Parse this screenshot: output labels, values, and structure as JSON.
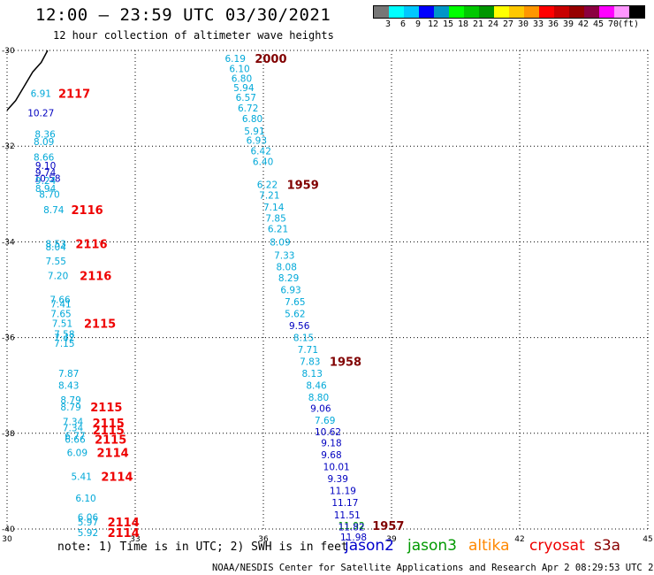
{
  "title": "12:00 – 23:59 UTC 03/30/2021",
  "subtitle": "12 hour collection of altimeter wave heights",
  "legend": {
    "colors": [
      "#777777",
      "#00ffff",
      "#00c8ff",
      "#0000ff",
      "#0096c8",
      "#00ff00",
      "#00c800",
      "#009600",
      "#ffff00",
      "#ffc800",
      "#ff9600",
      "#ff0000",
      "#c80000",
      "#960000",
      "#8b0040",
      "#ff00ff",
      "#ff96ff",
      "#000000"
    ],
    "labels": [
      "3",
      "6",
      "9",
      "12",
      "15",
      "18",
      "21",
      "24",
      "27",
      "30",
      "33",
      "36",
      "39",
      "42",
      "45",
      "70",
      "(ft)"
    ]
  },
  "axes": {
    "x_ticks": [
      "30",
      "33",
      "36",
      "39",
      "42",
      "45"
    ],
    "y_ticks": [
      "-30",
      "-32",
      "-34",
      "-36",
      "-38",
      "-40"
    ]
  },
  "track_colors": {
    "cyan": "#00a8d8",
    "blue": "#0000c0",
    "green": "#00a000",
    "time_red": "#ee0000",
    "time_maroon": "#800000"
  },
  "values_left": [
    {
      "t": "6.91",
      "lon": 30.55,
      "lat": -30.9,
      "c": "cyan"
    },
    {
      "t": "10.27",
      "lon": 30.48,
      "lat": -31.3,
      "c": "blue"
    },
    {
      "t": "8.36",
      "lon": 30.65,
      "lat": -31.75,
      "c": "cyan"
    },
    {
      "t": "8.09",
      "lon": 30.62,
      "lat": -31.9,
      "c": "cyan"
    },
    {
      "t": "8.66",
      "lon": 30.62,
      "lat": -32.23,
      "c": "cyan"
    },
    {
      "t": "9.10",
      "lon": 30.66,
      "lat": -32.4,
      "c": "blue"
    },
    {
      "t": "9.74",
      "lon": 30.66,
      "lat": -32.55,
      "c": "blue"
    },
    {
      "t": "10.58",
      "lon": 30.63,
      "lat": -32.67,
      "c": "blue"
    },
    {
      "t": "9.24",
      "lon": 30.66,
      "lat": -32.72,
      "c": "cyan"
    },
    {
      "t": "8.94",
      "lon": 30.66,
      "lat": -32.88,
      "c": "cyan"
    },
    {
      "t": "8.70",
      "lon": 30.75,
      "lat": -33.0,
      "c": "cyan"
    },
    {
      "t": "8.74",
      "lon": 30.85,
      "lat": -33.33,
      "c": "cyan"
    },
    {
      "t": "8.53",
      "lon": 30.9,
      "lat": -34.04,
      "c": "cyan"
    },
    {
      "t": "8.04",
      "lon": 30.9,
      "lat": -34.1,
      "c": "cyan"
    },
    {
      "t": "7.55",
      "lon": 30.9,
      "lat": -34.4,
      "c": "cyan"
    },
    {
      "t": "7.20",
      "lon": 30.95,
      "lat": -34.7,
      "c": "cyan"
    },
    {
      "t": "7.66",
      "lon": 31.0,
      "lat": -35.2,
      "c": "cyan"
    },
    {
      "t": "7.41",
      "lon": 31.02,
      "lat": -35.3,
      "c": "cyan"
    },
    {
      "t": "7.65",
      "lon": 31.02,
      "lat": -35.5,
      "c": "cyan"
    },
    {
      "t": "7.51",
      "lon": 31.05,
      "lat": -35.7,
      "c": "cyan"
    },
    {
      "t": "7.58",
      "lon": 31.1,
      "lat": -35.92,
      "c": "cyan"
    },
    {
      "t": "7.42",
      "lon": 31.1,
      "lat": -36.0,
      "c": "cyan"
    },
    {
      "t": "7.15",
      "lon": 31.1,
      "lat": -36.12,
      "c": "cyan"
    },
    {
      "t": "7.87",
      "lon": 31.2,
      "lat": -36.75,
      "c": "cyan"
    },
    {
      "t": "8.43",
      "lon": 31.2,
      "lat": -37.0,
      "c": "cyan"
    },
    {
      "t": "8.79",
      "lon": 31.25,
      "lat": -37.3,
      "c": "cyan"
    },
    {
      "t": "8.79",
      "lon": 31.25,
      "lat": -37.45,
      "c": "cyan"
    },
    {
      "t": "7.34",
      "lon": 31.3,
      "lat": -37.75,
      "c": "cyan"
    },
    {
      "t": "7.34",
      "lon": 31.3,
      "lat": -37.88,
      "c": "cyan"
    },
    {
      "t": "6.77",
      "lon": 31.35,
      "lat": -38.05,
      "c": "cyan"
    },
    {
      "t": "6.66",
      "lon": 31.35,
      "lat": -38.12,
      "c": "cyan"
    },
    {
      "t": "6.09",
      "lon": 31.4,
      "lat": -38.4,
      "c": "cyan"
    },
    {
      "t": "5.41",
      "lon": 31.5,
      "lat": -38.9,
      "c": "cyan"
    },
    {
      "t": "6.10",
      "lon": 31.6,
      "lat": -39.35,
      "c": "cyan"
    },
    {
      "t": "6.06",
      "lon": 31.65,
      "lat": -39.75,
      "c": "cyan"
    },
    {
      "t": "5.97",
      "lon": 31.65,
      "lat": -39.85,
      "c": "cyan"
    },
    {
      "t": "5.92",
      "lon": 31.65,
      "lat": -40.07,
      "c": "cyan"
    }
  ],
  "values_center": [
    {
      "t": "6.19",
      "lon": 35.1,
      "lat": -30.17,
      "c": "cyan"
    },
    {
      "t": "6.10",
      "lon": 35.2,
      "lat": -30.38,
      "c": "cyan"
    },
    {
      "t": "6.80",
      "lon": 35.25,
      "lat": -30.58,
      "c": "cyan"
    },
    {
      "t": "5.94",
      "lon": 35.3,
      "lat": -30.78,
      "c": "cyan"
    },
    {
      "t": "6.57",
      "lon": 35.35,
      "lat": -30.98,
      "c": "cyan"
    },
    {
      "t": "6.72",
      "lon": 35.4,
      "lat": -31.2,
      "c": "cyan"
    },
    {
      "t": "6.80",
      "lon": 35.5,
      "lat": -31.42,
      "c": "cyan"
    },
    {
      "t": "5.91",
      "lon": 35.55,
      "lat": -31.68,
      "c": "cyan"
    },
    {
      "t": "6.93",
      "lon": 35.6,
      "lat": -31.88,
      "c": "cyan"
    },
    {
      "t": "6.42",
      "lon": 35.7,
      "lat": -32.1,
      "c": "cyan"
    },
    {
      "t": "6.40",
      "lon": 35.75,
      "lat": -32.32,
      "c": "cyan"
    },
    {
      "t": "6.22",
      "lon": 35.85,
      "lat": -32.8,
      "c": "cyan"
    },
    {
      "t": "7.21",
      "lon": 35.9,
      "lat": -33.02,
      "c": "cyan"
    },
    {
      "t": "7.14",
      "lon": 36.0,
      "lat": -33.27,
      "c": "cyan"
    },
    {
      "t": "7.85",
      "lon": 36.05,
      "lat": -33.5,
      "c": "cyan"
    },
    {
      "t": "6.21",
      "lon": 36.1,
      "lat": -33.72,
      "c": "cyan"
    },
    {
      "t": "8.09",
      "lon": 36.15,
      "lat": -34.0,
      "c": "cyan"
    },
    {
      "t": "7.33",
      "lon": 36.25,
      "lat": -34.28,
      "c": "cyan"
    },
    {
      "t": "8.08",
      "lon": 36.3,
      "lat": -34.52,
      "c": "cyan"
    },
    {
      "t": "8.29",
      "lon": 36.35,
      "lat": -34.75,
      "c": "cyan"
    },
    {
      "t": "6.93",
      "lon": 36.4,
      "lat": -35.0,
      "c": "cyan"
    },
    {
      "t": "7.65",
      "lon": 36.5,
      "lat": -35.25,
      "c": "cyan"
    },
    {
      "t": "5.62",
      "lon": 36.5,
      "lat": -35.5,
      "c": "cyan"
    },
    {
      "t": "9.56",
      "lon": 36.6,
      "lat": -35.75,
      "c": "blue"
    },
    {
      "t": "8.15",
      "lon": 36.7,
      "lat": -36.0,
      "c": "cyan"
    },
    {
      "t": "7.71",
      "lon": 36.8,
      "lat": -36.25,
      "c": "cyan"
    },
    {
      "t": "7.83",
      "lon": 36.85,
      "lat": -36.5,
      "c": "cyan"
    },
    {
      "t": "8.13",
      "lon": 36.9,
      "lat": -36.75,
      "c": "cyan"
    },
    {
      "t": "8.46",
      "lon": 37.0,
      "lat": -37.0,
      "c": "cyan"
    },
    {
      "t": "8.80",
      "lon": 37.05,
      "lat": -37.25,
      "c": "cyan"
    },
    {
      "t": "9.06",
      "lon": 37.1,
      "lat": -37.48,
      "c": "blue"
    },
    {
      "t": "7.69",
      "lon": 37.2,
      "lat": -37.73,
      "c": "cyan"
    },
    {
      "t": "10.62",
      "lon": 37.2,
      "lat": -37.97,
      "c": "blue"
    },
    {
      "t": "9.18",
      "lon": 37.35,
      "lat": -38.2,
      "c": "blue"
    },
    {
      "t": "9.68",
      "lon": 37.35,
      "lat": -38.45,
      "c": "blue"
    },
    {
      "t": "10.01",
      "lon": 37.4,
      "lat": -38.7,
      "c": "blue"
    },
    {
      "t": "9.39",
      "lon": 37.5,
      "lat": -38.95,
      "c": "blue"
    },
    {
      "t": "11.19",
      "lon": 37.55,
      "lat": -39.2,
      "c": "blue"
    },
    {
      "t": "11.17",
      "lon": 37.6,
      "lat": -39.45,
      "c": "blue"
    },
    {
      "t": "11.51",
      "lon": 37.65,
      "lat": -39.7,
      "c": "blue"
    },
    {
      "t": "11.92",
      "lon": 37.75,
      "lat": -39.93,
      "c": "green"
    },
    {
      "t": "11.82",
      "lon": 37.75,
      "lat": -39.95,
      "c": "blue"
    },
    {
      "t": "11.98",
      "lon": 37.8,
      "lat": -40.17,
      "c": "blue"
    }
  ],
  "times": [
    {
      "t": "2000",
      "lon": 35.8,
      "lat": -30.17,
      "c": "time_maroon"
    },
    {
      "t": "2117",
      "lon": 31.2,
      "lat": -30.9,
      "c": "time_red"
    },
    {
      "t": "1959",
      "lon": 36.55,
      "lat": -32.8,
      "c": "time_maroon"
    },
    {
      "t": "2116",
      "lon": 31.5,
      "lat": -33.33,
      "c": "time_red"
    },
    {
      "t": "2116",
      "lon": 31.6,
      "lat": -34.04,
      "c": "time_red"
    },
    {
      "t": "2116",
      "lon": 31.7,
      "lat": -34.7,
      "c": "time_red"
    },
    {
      "t": "2115",
      "lon": 31.8,
      "lat": -35.7,
      "c": "time_red"
    },
    {
      "t": "1958",
      "lon": 37.55,
      "lat": -36.5,
      "c": "time_maroon"
    },
    {
      "t": "2115",
      "lon": 31.95,
      "lat": -37.45,
      "c": "time_red"
    },
    {
      "t": "2115",
      "lon": 32.0,
      "lat": -37.78,
      "c": "time_red"
    },
    {
      "t": "2115",
      "lon": 32.0,
      "lat": -37.93,
      "c": "time_red"
    },
    {
      "t": "2115",
      "lon": 32.05,
      "lat": -38.12,
      "c": "time_red"
    },
    {
      "t": "2114",
      "lon": 32.1,
      "lat": -38.4,
      "c": "time_red"
    },
    {
      "t": "2114",
      "lon": 32.2,
      "lat": -38.9,
      "c": "time_red"
    },
    {
      "t": "2114",
      "lon": 32.35,
      "lat": -39.85,
      "c": "time_red"
    },
    {
      "t": "1957",
      "lon": 38.55,
      "lat": -39.93,
      "c": "time_maroon"
    },
    {
      "t": "2114",
      "lon": 32.35,
      "lat": -40.07,
      "c": "time_red"
    }
  ],
  "coastline": [
    [
      30.0,
      -31.25
    ],
    [
      30.2,
      -31.05
    ],
    [
      30.4,
      -30.75
    ],
    [
      30.6,
      -30.45
    ],
    [
      30.8,
      -30.25
    ],
    [
      30.95,
      -30.0
    ]
  ],
  "note": "note:  1) Time is in UTC; 2) SWH is in feet",
  "satellites": [
    {
      "name": "jason2",
      "color": "#0000cc"
    },
    {
      "name": "jason3",
      "color": "#009900"
    },
    {
      "name": "altika",
      "color": "#ff8800"
    },
    {
      "name": "cryosat",
      "color": "#ee0000"
    },
    {
      "name": "s3a",
      "color": "#880000"
    }
  ],
  "credit": "NOAA/NESDIS Center for Satellite Applications and Research   Apr  2 08:29:53 UTC 2021"
}
